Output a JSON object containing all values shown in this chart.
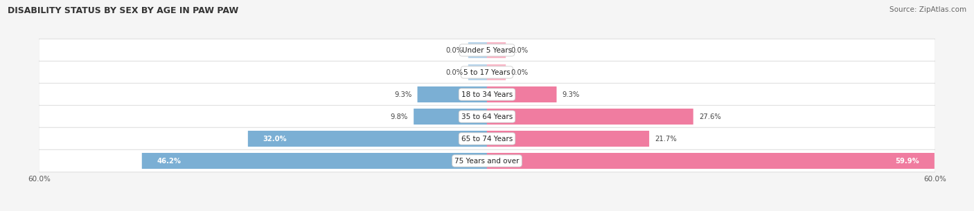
{
  "title": "DISABILITY STATUS BY SEX BY AGE IN PAW PAW",
  "source": "Source: ZipAtlas.com",
  "categories": [
    "Under 5 Years",
    "5 to 17 Years",
    "18 to 34 Years",
    "35 to 64 Years",
    "65 to 74 Years",
    "75 Years and over"
  ],
  "male_values": [
    0.0,
    0.0,
    9.3,
    9.8,
    32.0,
    46.2
  ],
  "female_values": [
    0.0,
    0.0,
    9.3,
    27.6,
    21.7,
    59.9
  ],
  "male_color": "#7bafd4",
  "female_color": "#f07ca0",
  "male_color_pale": "#b8d4ea",
  "female_color_pale": "#f9b8c8",
  "row_bg_color_odd": "#f2f2f2",
  "row_bg_color_even": "#e8e8e8",
  "max_value": 60.0,
  "label_fontsize": 7.5,
  "title_fontsize": 9,
  "source_fontsize": 7.5
}
